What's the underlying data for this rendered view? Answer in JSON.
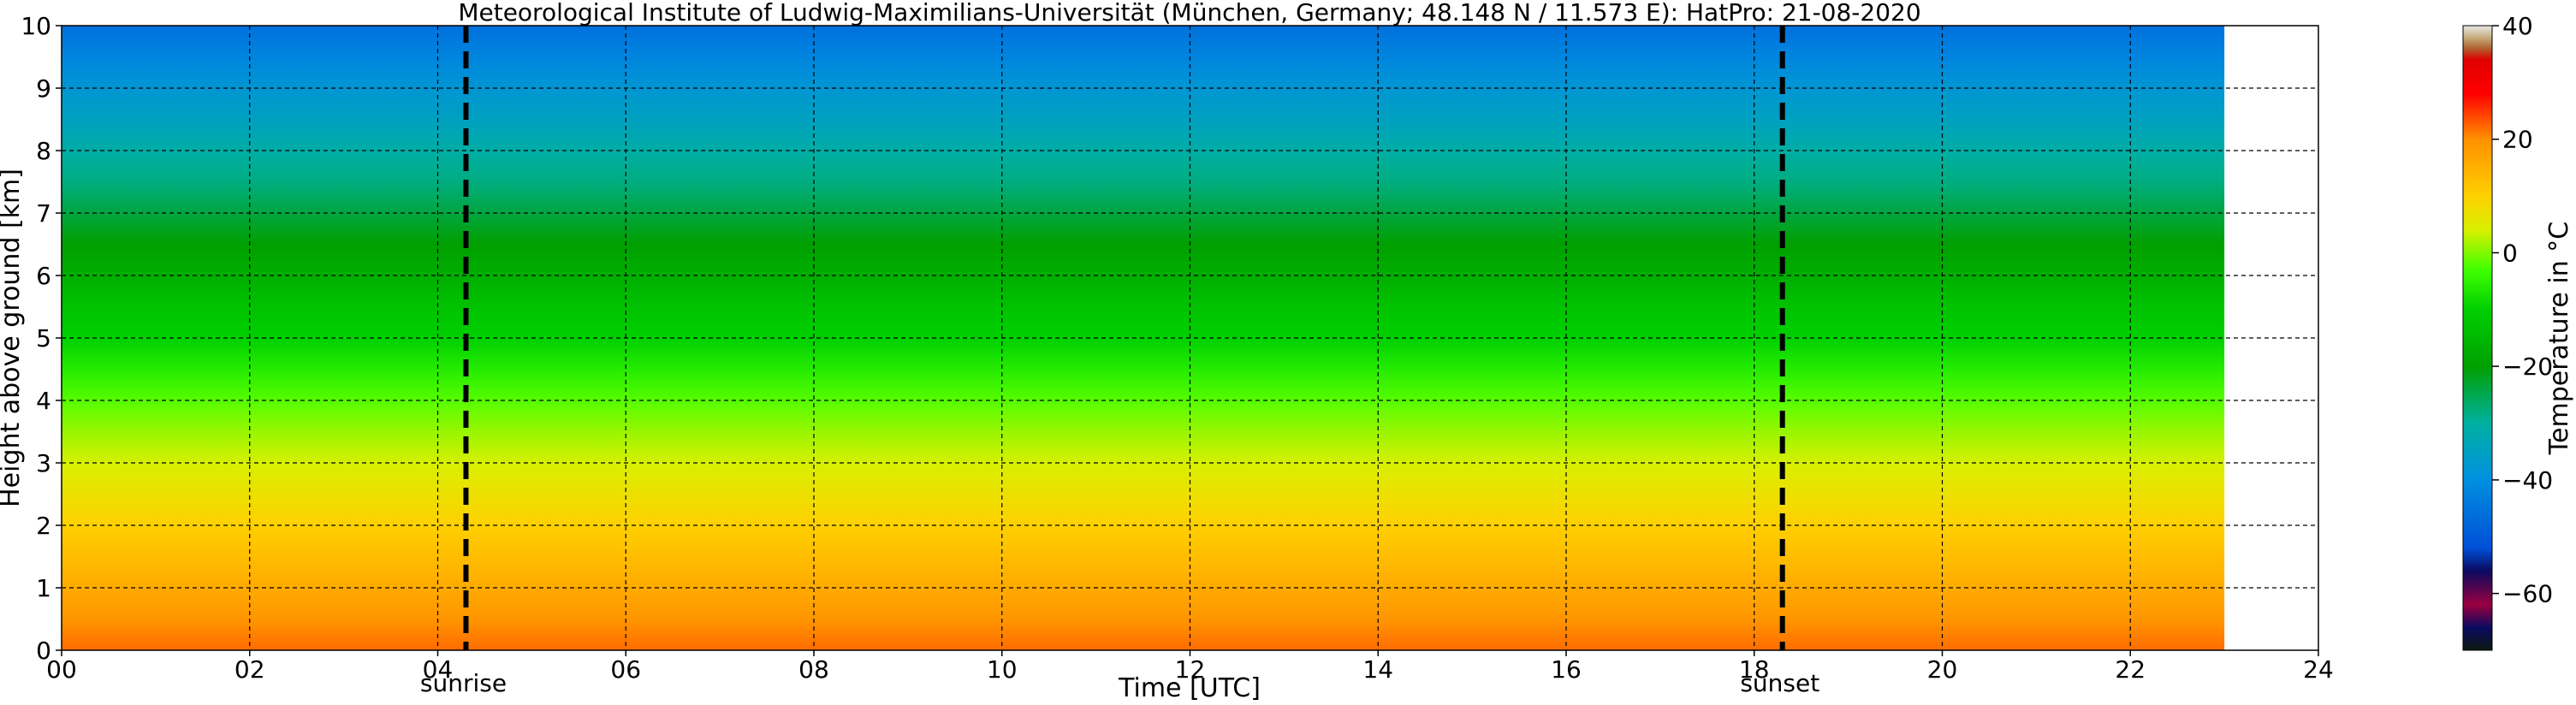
{
  "chart_data": {
    "type": "heatmap",
    "title": "Meteorological Institute of Ludwig-Maximilians-Universität (München, Germany; 48.148 N / 11.573 E):    HatPro: 21-08-2020",
    "xlabel": "Time [UTC]",
    "ylabel": "Height above ground [km]",
    "xlim": [
      0,
      24
    ],
    "ylim": [
      0,
      10
    ],
    "x_ticks": [
      "00",
      "02",
      "04",
      "06",
      "08",
      "10",
      "12",
      "14",
      "16",
      "18",
      "20",
      "22",
      "24"
    ],
    "y_ticks": [
      "0",
      "1",
      "2",
      "3",
      "4",
      "5",
      "6",
      "7",
      "8",
      "9",
      "10"
    ],
    "grid": true,
    "data_time_range": [
      0,
      23
    ],
    "temperature_profile": {
      "height_km": [
        0,
        0.5,
        1,
        1.5,
        2,
        2.5,
        3,
        3.5,
        4,
        4.5,
        5,
        5.5,
        6,
        6.5,
        7,
        7.5,
        8,
        8.5,
        9,
        9.5,
        10
      ],
      "temperature_c": [
        22,
        19,
        16,
        13,
        10,
        7,
        4,
        1,
        -2,
        -6,
        -10,
        -13,
        -17,
        -20,
        -24,
        -28,
        -31,
        -35,
        -38,
        -42,
        -46
      ]
    },
    "events": [
      {
        "name": "sunrise",
        "time": 4.3,
        "tick_label": "04"
      },
      {
        "name": "sunset",
        "time": 18.3,
        "tick_label": "18"
      }
    ],
    "colorbar": {
      "label": "Temperature in °C",
      "range": [
        -70,
        40
      ],
      "ticks": [
        "40",
        "20",
        "0",
        "−20",
        "−40",
        "−60"
      ],
      "tick_values": [
        40,
        20,
        0,
        -20,
        -40,
        -60
      ],
      "colors": [
        {
          "t": -70,
          "color": "#0a1a10"
        },
        {
          "t": -66,
          "color": "#0a0a60"
        },
        {
          "t": -62,
          "color": "#9a0040"
        },
        {
          "t": -56,
          "color": "#0a0a60"
        },
        {
          "t": -52,
          "color": "#0050d8"
        },
        {
          "t": -40,
          "color": "#0090e0"
        },
        {
          "t": -30,
          "color": "#00b0a0"
        },
        {
          "t": -20,
          "color": "#00a000"
        },
        {
          "t": -10,
          "color": "#00d000"
        },
        {
          "t": -3,
          "color": "#40ff00"
        },
        {
          "t": 4,
          "color": "#d8f000"
        },
        {
          "t": 10,
          "color": "#ffd000"
        },
        {
          "t": 20,
          "color": "#ff9000"
        },
        {
          "t": 28,
          "color": "#ff0000"
        },
        {
          "t": 34,
          "color": "#e00000"
        },
        {
          "t": 36,
          "color": "#b06030"
        },
        {
          "t": 38,
          "color": "#c8b080"
        },
        {
          "t": 40,
          "color": "#e8e8e8"
        }
      ]
    }
  }
}
